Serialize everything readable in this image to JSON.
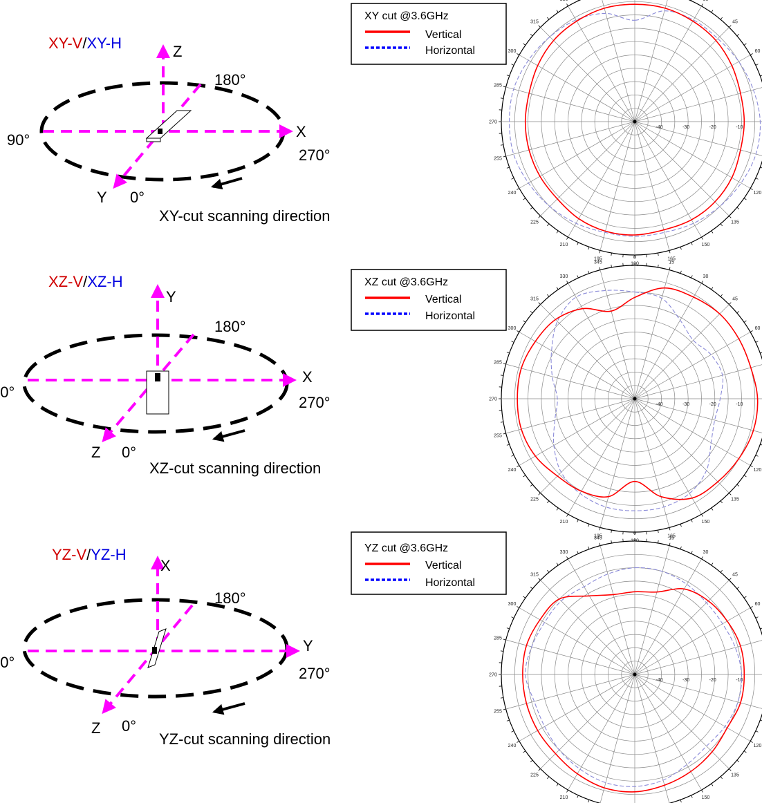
{
  "colors": {
    "vertical": "#ff0000",
    "horizontal": "#0000ff",
    "horizontal_trace": "#8a8ad8",
    "axis": "#ff00ff",
    "ring": "#000000",
    "grid": "#888888"
  },
  "panels": [
    {
      "title_v": "XY-V",
      "title_sep": "/",
      "title_h": "XY-H",
      "axis_up": "Z",
      "axis_right": "X",
      "axis_down": "Y",
      "angle_180": "180°",
      "angle_90": "90°",
      "angle_270": "270°",
      "angle_0": "0°",
      "caption": "XY-cut scanning direction",
      "legend_title": "XY cut @3.6GHz",
      "legend_v": "Vertical",
      "legend_h": "Horizontal"
    },
    {
      "title_v": "XZ-V",
      "title_sep": "/",
      "title_h": "XZ-H",
      "axis_up": "Y",
      "axis_right": "X",
      "axis_down": "Z",
      "angle_180": "180°",
      "angle_90": "90°",
      "angle_270": "270°",
      "angle_0": "0°",
      "caption": "XZ-cut scanning direction",
      "legend_title": "XZ cut @3.6GHz",
      "legend_v": "Vertical",
      "legend_h": "Horizontal"
    },
    {
      "title_v": "YZ-V",
      "title_sep": "/",
      "title_h": "YZ-H",
      "axis_up": "X",
      "axis_right": "Y",
      "axis_down": "Z",
      "angle_180": "180°",
      "angle_90": "90°",
      "angle_270": "270°",
      "angle_0": "0°",
      "caption": "YZ-cut scanning direction",
      "legend_title": "YZ cut @3.6GHz",
      "legend_v": "Vertical",
      "legend_h": "Horizontal"
    }
  ],
  "chart_data": [
    {
      "type": "polar",
      "title": "XY cut @3.6GHz",
      "angle_labels": [
        "0",
        "15",
        "30",
        "45",
        "60",
        "75",
        "90",
        "105",
        "120",
        "135",
        "150",
        "165",
        "180",
        "195",
        "210",
        "225",
        "240",
        "255",
        "270",
        "285",
        "300",
        "315",
        "330",
        "345"
      ],
      "radial_labels": [
        "-40",
        "-30",
        "-20",
        "-10",
        "0"
      ],
      "radial_unit": "dB",
      "rlim": [
        -50,
        0
      ],
      "series": [
        {
          "name": "Vertical",
          "angles": [
            0,
            15,
            30,
            45,
            60,
            75,
            90,
            105,
            120,
            135,
            150,
            165,
            180,
            195,
            210,
            225,
            240,
            255,
            270,
            285,
            300,
            315,
            330,
            345
          ],
          "values": [
            -6,
            -6,
            -6.5,
            -7,
            -8,
            -9,
            -9,
            -9,
            -8,
            -7.5,
            -7.5,
            -8,
            -7.5,
            -7.5,
            -8,
            -9,
            -9,
            -9,
            -9,
            -9,
            -8,
            -7,
            -6.5,
            -6
          ]
        },
        {
          "name": "Horizontal",
          "angles": [
            0,
            15,
            30,
            45,
            60,
            75,
            90,
            105,
            120,
            135,
            150,
            165,
            180,
            195,
            210,
            225,
            240,
            255,
            270,
            285,
            300,
            315,
            330,
            345
          ],
          "values": [
            -12,
            -7,
            -6,
            -6,
            -5,
            -4,
            -3,
            -3,
            -4,
            -5,
            -6,
            -7,
            -7,
            -7,
            -6,
            -5,
            -4,
            -3,
            -3,
            -3,
            -4,
            -5,
            -6,
            -8
          ]
        }
      ]
    },
    {
      "type": "polar",
      "title": "XZ cut @3.6GHz",
      "angle_labels": [
        "0",
        "15",
        "30",
        "45",
        "60",
        "75",
        "90",
        "105",
        "120",
        "135",
        "150",
        "165",
        "180",
        "195",
        "210",
        "225",
        "240",
        "255",
        "270",
        "285",
        "300",
        "315",
        "330",
        "345"
      ],
      "radial_labels": [
        "-40",
        "-30",
        "-20",
        "-10",
        "0"
      ],
      "radial_unit": "dB",
      "rlim": [
        -50,
        0
      ],
      "series": [
        {
          "name": "Vertical",
          "angles": [
            0,
            15,
            30,
            45,
            60,
            75,
            90,
            105,
            120,
            135,
            150,
            165,
            180,
            195,
            210,
            225,
            240,
            255,
            270,
            285,
            300,
            315,
            330,
            345
          ],
          "values": [
            -12,
            -7,
            -6,
            -5,
            -5,
            -5,
            -4,
            -4,
            -5,
            -6,
            -7,
            -12,
            -19,
            -12,
            -10,
            -9,
            -7,
            -6,
            -6,
            -6,
            -7,
            -8,
            -11,
            -16
          ]
        },
        {
          "name": "Horizontal",
          "angles": [
            0,
            15,
            30,
            45,
            60,
            75,
            90,
            105,
            120,
            135,
            150,
            165,
            180,
            195,
            210,
            225,
            240,
            255,
            270,
            285,
            300,
            315,
            330,
            345
          ],
          "values": [
            -10,
            -11,
            -16,
            -19,
            -17,
            -16,
            -18,
            -19,
            -17,
            -12,
            -9,
            -8,
            -8,
            -8,
            -9,
            -11,
            -15,
            -19,
            -21,
            -18,
            -14,
            -9,
            -6,
            -8
          ]
        }
      ]
    },
    {
      "type": "polar",
      "title": "YZ cut @3.6GHz",
      "angle_labels": [
        "0",
        "15",
        "30",
        "45",
        "60",
        "75",
        "90",
        "105",
        "120",
        "135",
        "150",
        "165",
        "180",
        "195",
        "210",
        "225",
        "240",
        "255",
        "270",
        "285",
        "300",
        "315",
        "330",
        "345"
      ],
      "radial_labels": [
        "-40",
        "-30",
        "-20",
        "-10",
        "0"
      ],
      "radial_unit": "dB",
      "rlim": [
        -50,
        0
      ],
      "series": [
        {
          "name": "Vertical",
          "angles": [
            0,
            15,
            30,
            45,
            60,
            75,
            90,
            105,
            120,
            135,
            150,
            165,
            180,
            195,
            210,
            225,
            240,
            255,
            270,
            285,
            300,
            315,
            330,
            345
          ],
          "values": [
            -19,
            -18,
            -13,
            -11,
            -10,
            -9,
            -9,
            -9,
            -10,
            -9,
            -8,
            -7,
            -6,
            -6,
            -7,
            -8,
            -8,
            -8,
            -8,
            -8,
            -9,
            -10,
            -16,
            -19
          ]
        },
        {
          "name": "Horizontal",
          "angles": [
            0,
            15,
            30,
            45,
            60,
            75,
            90,
            105,
            120,
            135,
            150,
            165,
            180,
            195,
            210,
            225,
            240,
            255,
            270,
            285,
            300,
            315,
            330,
            345
          ],
          "values": [
            -10,
            -10,
            -11,
            -12,
            -12,
            -11,
            -10,
            -10,
            -11,
            -12,
            -11,
            -9,
            -8,
            -8,
            -9,
            -10,
            -11,
            -11,
            -9,
            -10,
            -11,
            -11,
            -12,
            -11
          ]
        }
      ]
    }
  ]
}
